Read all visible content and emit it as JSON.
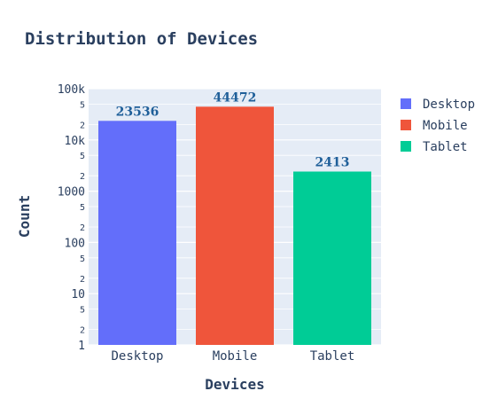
{
  "chart_data": {
    "type": "bar",
    "title": "Distribution of Devices",
    "xlabel": "Devices",
    "ylabel": "Count",
    "yscale": "log",
    "ylim": [
      1,
      100000
    ],
    "grid": true,
    "legend_position": "top-right",
    "categories": [
      "Desktop",
      "Mobile",
      "Tablet"
    ],
    "values": [
      23536,
      44472,
      2413
    ],
    "data_labels": [
      "23536",
      "44472",
      "2413"
    ],
    "colors": [
      "#636efa",
      "#ef553b",
      "#00cc96"
    ],
    "data_label_color": "#1f5f99",
    "legend": [
      "Desktop",
      "Mobile",
      "Tablet"
    ],
    "y_major_ticks": [
      {
        "value": 1,
        "label": "1"
      },
      {
        "value": 10,
        "label": "10"
      },
      {
        "value": 100,
        "label": "100"
      },
      {
        "value": 1000,
        "label": "1000"
      },
      {
        "value": 10000,
        "label": "10k"
      },
      {
        "value": 100000,
        "label": "100k"
      }
    ],
    "y_minor_ticks": [
      {
        "value": 2,
        "label": "2"
      },
      {
        "value": 5,
        "label": "5"
      },
      {
        "value": 20,
        "label": "2"
      },
      {
        "value": 50,
        "label": "5"
      },
      {
        "value": 200,
        "label": "2"
      },
      {
        "value": 500,
        "label": "5"
      },
      {
        "value": 2000,
        "label": "2"
      },
      {
        "value": 5000,
        "label": "5"
      },
      {
        "value": 20000,
        "label": "2"
      },
      {
        "value": 50000,
        "label": "5"
      }
    ],
    "plot_bgcolor": "#e5ecf6",
    "grid_color": "#ffffff"
  }
}
